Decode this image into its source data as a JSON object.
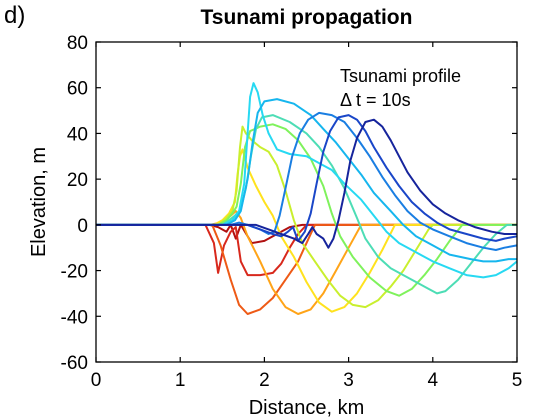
{
  "panel_label": "d)",
  "chart_data": {
    "type": "line",
    "title": "Tsunami propagation",
    "xlabel": "Distance, km",
    "ylabel": "Elevation, m",
    "xlim": [
      0,
      5
    ],
    "ylim": [
      -60,
      80
    ],
    "xticks": [
      0,
      1,
      2,
      3,
      4,
      5
    ],
    "yticks": [
      -60,
      -40,
      -20,
      0,
      20,
      40,
      60,
      80
    ],
    "xtick_labels": [
      "0",
      "1",
      "2",
      "3",
      "4",
      "5"
    ],
    "ytick_labels": [
      "-60",
      "-40",
      "-20",
      "0",
      "20",
      "40",
      "60",
      "80"
    ],
    "grid": false,
    "legend_position": "top-right",
    "annotation": [
      "Tsunami profile",
      "Δ t = 10s"
    ],
    "series": [
      {
        "color": "#b01010",
        "points": [
          [
            0,
            0
          ],
          [
            1.35,
            0
          ],
          [
            1.45,
            -1
          ],
          [
            1.55,
            -3
          ],
          [
            1.6,
            0
          ],
          [
            1.66,
            -6
          ],
          [
            1.72,
            0
          ],
          [
            1.85,
            -8
          ],
          [
            2.0,
            -7
          ],
          [
            2.15,
            -4
          ],
          [
            2.3,
            -1
          ],
          [
            2.45,
            0
          ],
          [
            5,
            0
          ]
        ]
      },
      {
        "color": "#d8281c",
        "points": [
          [
            0,
            0
          ],
          [
            1.3,
            0
          ],
          [
            1.4,
            -8
          ],
          [
            1.45,
            -21
          ],
          [
            1.52,
            -9
          ],
          [
            1.6,
            -3
          ],
          [
            1.66,
            -1
          ],
          [
            1.72,
            -16
          ],
          [
            1.8,
            -22
          ],
          [
            1.95,
            -22
          ],
          [
            2.1,
            -21
          ],
          [
            2.2,
            -17
          ],
          [
            2.3,
            -10
          ],
          [
            2.4,
            -4
          ],
          [
            2.5,
            0
          ],
          [
            5,
            0
          ]
        ]
      },
      {
        "color": "#ee5a16",
        "points": [
          [
            0,
            0
          ],
          [
            1.38,
            0
          ],
          [
            1.48,
            -9
          ],
          [
            1.6,
            -24
          ],
          [
            1.7,
            -35
          ],
          [
            1.8,
            -39
          ],
          [
            1.95,
            -37
          ],
          [
            2.1,
            -32
          ],
          [
            2.25,
            -24
          ],
          [
            2.4,
            -16
          ],
          [
            2.5,
            -8
          ],
          [
            2.6,
            0
          ],
          [
            5,
            0
          ]
        ]
      },
      {
        "color": "#ffa418",
        "points": [
          [
            0,
            0
          ],
          [
            1.35,
            0
          ],
          [
            1.48,
            1
          ],
          [
            1.6,
            4
          ],
          [
            1.66,
            6
          ],
          [
            1.72,
            3
          ],
          [
            1.8,
            -5
          ],
          [
            1.95,
            -16
          ],
          [
            2.1,
            -28
          ],
          [
            2.25,
            -36
          ],
          [
            2.4,
            -39
          ],
          [
            2.55,
            -37
          ],
          [
            2.7,
            -30
          ],
          [
            2.85,
            -20
          ],
          [
            3.0,
            -10
          ],
          [
            3.15,
            0
          ],
          [
            5,
            0
          ]
        ]
      },
      {
        "color": "#ffe21e",
        "points": [
          [
            0,
            0
          ],
          [
            1.4,
            0
          ],
          [
            1.5,
            2
          ],
          [
            1.58,
            5
          ],
          [
            1.65,
            10
          ],
          [
            1.68,
            22
          ],
          [
            1.71,
            30
          ],
          [
            1.74,
            33
          ],
          [
            1.8,
            25
          ],
          [
            1.9,
            17
          ],
          [
            2.0,
            10
          ],
          [
            2.1,
            4
          ],
          [
            2.2,
            -5
          ],
          [
            2.35,
            -14
          ],
          [
            2.5,
            -25
          ],
          [
            2.65,
            -34
          ],
          [
            2.8,
            -38
          ],
          [
            2.95,
            -36
          ],
          [
            3.1,
            -30
          ],
          [
            3.25,
            -21
          ],
          [
            3.4,
            -11
          ],
          [
            3.55,
            0
          ],
          [
            5,
            0
          ]
        ]
      },
      {
        "color": "#c9ef2e",
        "points": [
          [
            0,
            0
          ],
          [
            1.45,
            0
          ],
          [
            1.55,
            3
          ],
          [
            1.62,
            6
          ],
          [
            1.67,
            15
          ],
          [
            1.71,
            34
          ],
          [
            1.74,
            43
          ],
          [
            1.78,
            40
          ],
          [
            1.85,
            37
          ],
          [
            1.95,
            34
          ],
          [
            2.05,
            32
          ],
          [
            2.15,
            26
          ],
          [
            2.25,
            15
          ],
          [
            2.35,
            2
          ],
          [
            2.45,
            -8
          ],
          [
            2.6,
            -16
          ],
          [
            2.75,
            -24
          ],
          [
            2.9,
            -31
          ],
          [
            3.05,
            -35
          ],
          [
            3.2,
            -36
          ],
          [
            3.35,
            -33
          ],
          [
            3.5,
            -27
          ],
          [
            3.65,
            -20
          ],
          [
            3.8,
            -11
          ],
          [
            3.95,
            -2
          ],
          [
            4.0,
            0
          ],
          [
            5,
            0
          ]
        ]
      },
      {
        "color": "#7ff25c",
        "points": [
          [
            0,
            0
          ],
          [
            1.45,
            0
          ],
          [
            1.55,
            2
          ],
          [
            1.62,
            5
          ],
          [
            1.67,
            8
          ],
          [
            1.72,
            18
          ],
          [
            1.77,
            34
          ],
          [
            1.83,
            41
          ],
          [
            1.95,
            43
          ],
          [
            2.1,
            44
          ],
          [
            2.25,
            42
          ],
          [
            2.4,
            37
          ],
          [
            2.55,
            29
          ],
          [
            2.7,
            17
          ],
          [
            2.8,
            5
          ],
          [
            2.9,
            -5
          ],
          [
            3.05,
            -14
          ],
          [
            3.25,
            -23
          ],
          [
            3.45,
            -29
          ],
          [
            3.6,
            -31
          ],
          [
            3.75,
            -28
          ],
          [
            3.9,
            -22
          ],
          [
            4.05,
            -15
          ],
          [
            4.2,
            -7
          ],
          [
            4.35,
            0
          ],
          [
            5,
            0
          ]
        ]
      },
      {
        "color": "#4dddb5",
        "points": [
          [
            0,
            0
          ],
          [
            1.5,
            0
          ],
          [
            1.58,
            2
          ],
          [
            1.65,
            4
          ],
          [
            1.72,
            7
          ],
          [
            1.78,
            16
          ],
          [
            1.84,
            30
          ],
          [
            1.9,
            42
          ],
          [
            1.97,
            47
          ],
          [
            2.1,
            48
          ],
          [
            2.3,
            45
          ],
          [
            2.5,
            40
          ],
          [
            2.65,
            34
          ],
          [
            2.8,
            26
          ],
          [
            2.95,
            16
          ],
          [
            3.1,
            3
          ],
          [
            3.2,
            -6
          ],
          [
            3.35,
            -14
          ],
          [
            3.5,
            -19
          ],
          [
            3.65,
            -22
          ],
          [
            3.8,
            -25
          ],
          [
            3.95,
            -28
          ],
          [
            4.05,
            -30
          ],
          [
            4.15,
            -29
          ],
          [
            4.3,
            -24
          ],
          [
            4.45,
            -17
          ],
          [
            4.6,
            -10
          ],
          [
            4.75,
            -4
          ],
          [
            4.88,
            0
          ],
          [
            5,
            0
          ]
        ]
      },
      {
        "color": "#27d9f2",
        "points": [
          [
            0,
            0
          ],
          [
            1.5,
            0
          ],
          [
            1.62,
            2
          ],
          [
            1.7,
            6
          ],
          [
            1.76,
            18
          ],
          [
            1.8,
            40
          ],
          [
            1.83,
            56
          ],
          [
            1.87,
            62
          ],
          [
            1.92,
            58
          ],
          [
            1.98,
            48
          ],
          [
            2.05,
            40
          ],
          [
            2.15,
            33
          ],
          [
            2.3,
            31
          ],
          [
            2.5,
            30
          ],
          [
            2.65,
            27
          ],
          [
            2.8,
            24
          ],
          [
            2.95,
            18
          ],
          [
            3.15,
            11
          ],
          [
            3.3,
            4
          ],
          [
            3.45,
            -3
          ],
          [
            3.6,
            -8
          ],
          [
            3.8,
            -12
          ],
          [
            4.0,
            -16
          ],
          [
            4.2,
            -19
          ],
          [
            4.4,
            -22
          ],
          [
            4.6,
            -23
          ],
          [
            4.75,
            -22
          ],
          [
            4.9,
            -19
          ],
          [
            5.0,
            -16
          ]
        ]
      },
      {
        "color": "#16b6ee",
        "points": [
          [
            0,
            0
          ],
          [
            1.55,
            0
          ],
          [
            1.65,
            2
          ],
          [
            1.72,
            6
          ],
          [
            1.8,
            20
          ],
          [
            1.86,
            36
          ],
          [
            1.92,
            49
          ],
          [
            2.0,
            54
          ],
          [
            2.15,
            55
          ],
          [
            2.35,
            53
          ],
          [
            2.55,
            48
          ],
          [
            2.7,
            42
          ],
          [
            2.85,
            36
          ],
          [
            3.0,
            29
          ],
          [
            3.15,
            22
          ],
          [
            3.3,
            14
          ],
          [
            3.5,
            6
          ],
          [
            3.65,
            0
          ],
          [
            3.8,
            -5
          ],
          [
            4.0,
            -9
          ],
          [
            4.2,
            -13
          ],
          [
            4.45,
            -15
          ],
          [
            4.6,
            -16
          ],
          [
            4.75,
            -16
          ],
          [
            4.9,
            -15
          ],
          [
            5.0,
            -15
          ]
        ]
      },
      {
        "color": "#1a7ee2",
        "points": [
          [
            0,
            0
          ],
          [
            1.6,
            0
          ],
          [
            1.7,
            1
          ],
          [
            1.8,
            0
          ],
          [
            1.95,
            -2
          ],
          [
            2.05,
            -4
          ],
          [
            2.12,
            -3
          ],
          [
            2.18,
            4
          ],
          [
            2.25,
            16
          ],
          [
            2.33,
            30
          ],
          [
            2.42,
            40
          ],
          [
            2.52,
            46
          ],
          [
            2.65,
            49
          ],
          [
            2.8,
            48
          ],
          [
            2.95,
            45
          ],
          [
            3.1,
            38
          ],
          [
            3.25,
            30
          ],
          [
            3.4,
            21
          ],
          [
            3.55,
            13
          ],
          [
            3.7,
            6
          ],
          [
            3.85,
            1
          ],
          [
            4.0,
            -2
          ],
          [
            4.2,
            -5
          ],
          [
            4.4,
            -8
          ],
          [
            4.6,
            -10
          ],
          [
            4.75,
            -11
          ],
          [
            4.85,
            -10
          ],
          [
            5.0,
            -9
          ]
        ]
      },
      {
        "color": "#1a46c8",
        "points": [
          [
            0,
            0
          ],
          [
            1.8,
            0
          ],
          [
            1.95,
            -2
          ],
          [
            2.1,
            -4
          ],
          [
            2.2,
            -5
          ],
          [
            2.28,
            -3
          ],
          [
            2.34,
            -1
          ],
          [
            2.4,
            -7
          ],
          [
            2.48,
            -3
          ],
          [
            2.55,
            5
          ],
          [
            2.62,
            18
          ],
          [
            2.7,
            32
          ],
          [
            2.78,
            41
          ],
          [
            2.88,
            47
          ],
          [
            3.0,
            48
          ],
          [
            3.1,
            46
          ],
          [
            3.2,
            41
          ],
          [
            3.3,
            34
          ],
          [
            3.45,
            25
          ],
          [
            3.6,
            17
          ],
          [
            3.75,
            10
          ],
          [
            3.9,
            5
          ],
          [
            4.05,
            1
          ],
          [
            4.2,
            -2
          ],
          [
            4.4,
            -4
          ],
          [
            4.6,
            -6
          ],
          [
            4.75,
            -7
          ],
          [
            4.85,
            -6
          ],
          [
            5.0,
            -5
          ]
        ]
      },
      {
        "color": "#16249c",
        "points": [
          [
            0,
            0
          ],
          [
            1.9,
            0
          ],
          [
            2.05,
            -2
          ],
          [
            2.2,
            -4
          ],
          [
            2.35,
            -6
          ],
          [
            2.45,
            -8
          ],
          [
            2.52,
            -4
          ],
          [
            2.57,
            -1
          ],
          [
            2.62,
            -4
          ],
          [
            2.7,
            -6
          ],
          [
            2.76,
            -10
          ],
          [
            2.82,
            -6
          ],
          [
            2.88,
            2
          ],
          [
            2.95,
            14
          ],
          [
            3.02,
            28
          ],
          [
            3.1,
            38
          ],
          [
            3.2,
            45
          ],
          [
            3.3,
            46
          ],
          [
            3.4,
            43
          ],
          [
            3.5,
            37
          ],
          [
            3.6,
            30
          ],
          [
            3.7,
            23
          ],
          [
            3.85,
            15
          ],
          [
            4.0,
            9
          ],
          [
            4.15,
            5
          ],
          [
            4.3,
            2
          ],
          [
            4.5,
            -1
          ],
          [
            4.7,
            -3
          ],
          [
            4.85,
            -4
          ],
          [
            5.0,
            -4
          ]
        ]
      }
    ]
  }
}
